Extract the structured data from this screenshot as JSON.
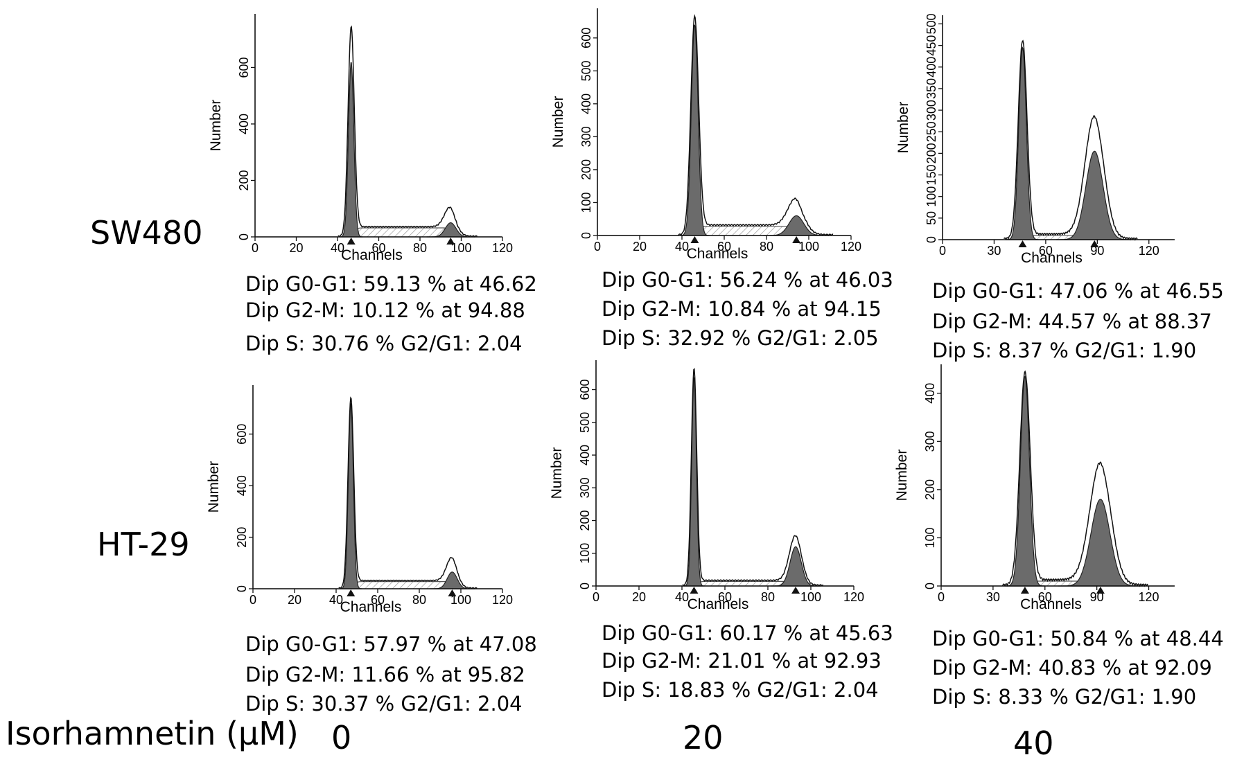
{
  "figure": {
    "row_labels": [
      "SW480",
      "HT-29"
    ],
    "concentration_label": "Isorhamnetin (μM)",
    "concentrations": [
      "0",
      "20",
      "40"
    ]
  },
  "chart_data": [
    {
      "type": "area",
      "cell_line": "SW480",
      "concentration": "0",
      "xlabel": "Channels",
      "ylabel": "Number",
      "xlim": [
        0,
        120
      ],
      "ylim": [
        0,
        790
      ],
      "xticks": [
        0,
        20,
        40,
        60,
        80,
        100,
        120
      ],
      "yticks": [
        0,
        200,
        400,
        600
      ],
      "g1": {
        "position": 46.62,
        "height": 620,
        "sigma": 1.3
      },
      "g2": {
        "position": 94.88,
        "height": 50,
        "sigma": 2.6
      },
      "s_phase_level": 32,
      "envelope_peak": 740,
      "envelope_g2": 75,
      "stats": [
        "Dip G0-G1: 59.13 % at 46.62",
        "Dip G2-M: 10.12 % at 94.88",
        "Dip S: 30.76 % G2/G1: 2.04"
      ]
    },
    {
      "type": "area",
      "cell_line": "SW480",
      "concentration": "20",
      "xlabel": "Channels",
      "ylabel": "Number",
      "xlim": [
        0,
        120
      ],
      "ylim": [
        0,
        690
      ],
      "xticks": [
        0,
        20,
        40,
        60,
        80,
        100,
        120
      ],
      "yticks": [
        0,
        100,
        200,
        300,
        400,
        500,
        600
      ],
      "g1": {
        "position": 46.03,
        "height": 640,
        "sigma": 1.6
      },
      "g2": {
        "position": 94.15,
        "height": 60,
        "sigma": 3.5
      },
      "s_phase_level": 28,
      "envelope_peak": 660,
      "envelope_g2": 85,
      "stats": [
        "Dip G0-G1: 56.24 % at 46.03",
        "Dip G2-M: 10.84 % at 94.15",
        "Dip S: 32.92 % G2/G1: 2.05"
      ]
    },
    {
      "type": "area",
      "cell_line": "SW480",
      "concentration": "40",
      "xlabel": "Channels",
      "ylabel": "Number",
      "xlim": [
        0,
        135
      ],
      "ylim": [
        0,
        520
      ],
      "xticks": [
        0,
        30,
        60,
        90,
        120
      ],
      "yticks": [
        0,
        50,
        100,
        150,
        200,
        250,
        300,
        350,
        400,
        450,
        500
      ],
      "g1": {
        "position": 46.55,
        "height": 445,
        "sigma": 2.2
      },
      "g2": {
        "position": 88.37,
        "height": 205,
        "sigma": 5.0
      },
      "s_phase_level": 10,
      "envelope_peak": 458,
      "envelope_g2": 275,
      "stats": [
        "Dip G0-G1: 47.06 % at 46.55",
        "Dip G2-M: 44.57 % at 88.37",
        "Dip S: 8.37 % G2/G1: 1.90"
      ]
    },
    {
      "type": "area",
      "cell_line": "HT-29",
      "concentration": "0",
      "xlabel": "Channels",
      "ylabel": "Number",
      "xlim": [
        0,
        120
      ],
      "ylim": [
        0,
        790
      ],
      "xticks": [
        0,
        20,
        40,
        60,
        80,
        100,
        120
      ],
      "yticks": [
        0,
        200,
        400,
        600
      ],
      "g1": {
        "position": 47.08,
        "height": 720,
        "sigma": 1.2
      },
      "g2": {
        "position": 95.82,
        "height": 65,
        "sigma": 2.4
      },
      "s_phase_level": 28,
      "envelope_peak": 735,
      "envelope_g2": 95,
      "stats": [
        "Dip G0-G1: 57.97 % at 47.08",
        "Dip G2-M: 11.66 % at 95.82",
        "Dip S: 30.37 % G2/G1: 2.04"
      ]
    },
    {
      "type": "area",
      "cell_line": "HT-29",
      "concentration": "20",
      "xlabel": "Channels",
      "ylabel": "Number",
      "xlim": [
        0,
        120
      ],
      "ylim": [
        0,
        690
      ],
      "xticks": [
        0,
        20,
        40,
        60,
        80,
        100,
        120
      ],
      "yticks": [
        0,
        100,
        200,
        300,
        400,
        500,
        600
      ],
      "g1": {
        "position": 45.63,
        "height": 640,
        "sigma": 1.1
      },
      "g2": {
        "position": 92.93,
        "height": 120,
        "sigma": 2.6
      },
      "s_phase_level": 14,
      "envelope_peak": 660,
      "envelope_g2": 140,
      "stats": [
        "Dip G0-G1: 60.17 % at 45.63",
        "Dip G2-M: 21.01 % at 92.93",
        "Dip S: 18.83 % G2/G1: 2.04"
      ]
    },
    {
      "type": "area",
      "cell_line": "HT-29",
      "concentration": "40",
      "xlabel": "Channels",
      "ylabel": "Number",
      "xlim": [
        0,
        135
      ],
      "ylim": [
        0,
        460
      ],
      "xticks": [
        0,
        30,
        60,
        90,
        120
      ],
      "yticks": [
        0,
        100,
        200,
        300,
        400
      ],
      "g1": {
        "position": 48.44,
        "height": 435,
        "sigma": 2.6
      },
      "g2": {
        "position": 92.09,
        "height": 180,
        "sigma": 5.5
      },
      "s_phase_level": 10,
      "envelope_peak": 440,
      "envelope_g2": 245,
      "stats": [
        "Dip G0-G1: 50.84 % at 48.44",
        "Dip G2-M: 40.83 % at 92.09",
        "Dip S: 8.33 % G2/G1: 1.90"
      ]
    }
  ]
}
